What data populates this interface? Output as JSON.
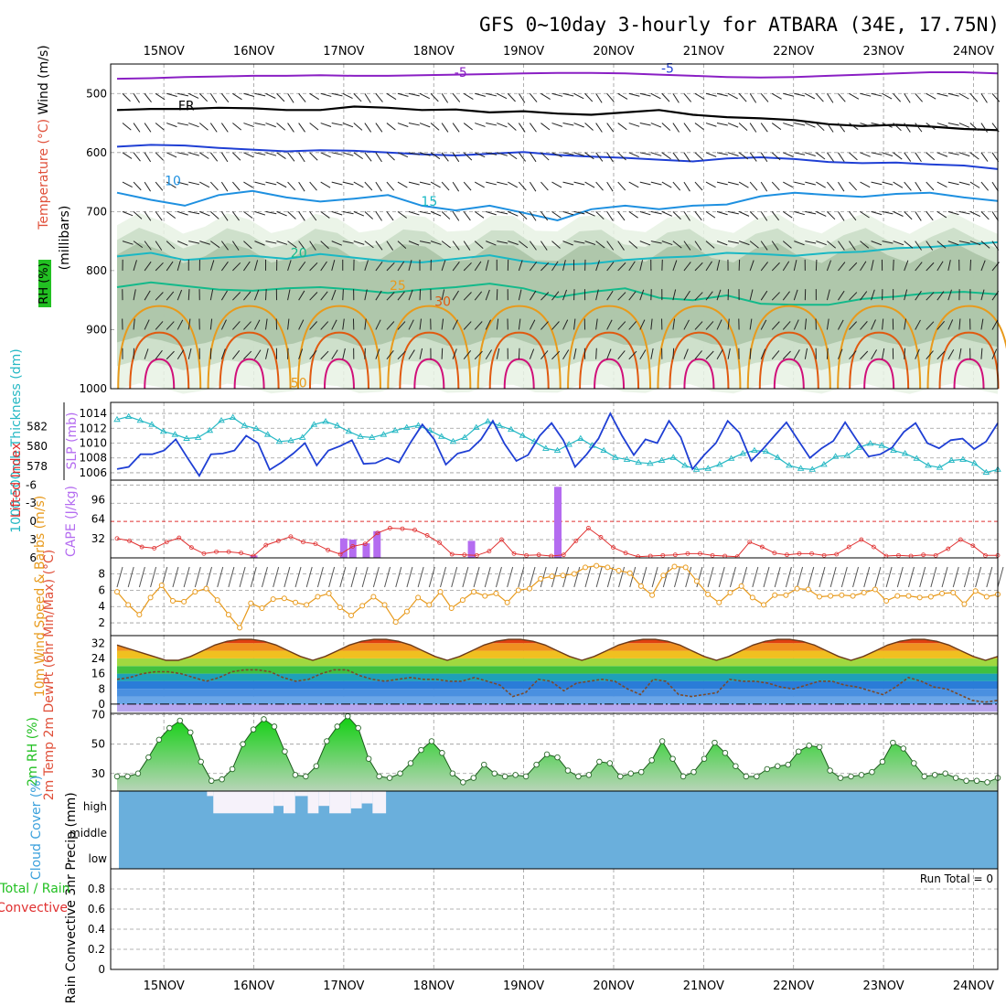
{
  "title": "GFS 0~10day 3-hourly for ATBARA (34E, 17.75N)",
  "dates": [
    "15NOV",
    "16NOV",
    "17NOV",
    "18NOV",
    "19NOV",
    "20NOV",
    "21NOV",
    "22NOV",
    "23NOV",
    "24NOV"
  ],
  "colors": {
    "temp_minus5": "#8a1fc4",
    "temp_fr": "#000000",
    "temp_m5": "#1f3fd4",
    "temp_10": "#1e90e0",
    "temp_15": "#19b8c4",
    "temp_20": "#13b98a",
    "temp_25": "#e89a1c",
    "temp_30": "#e05a10",
    "temp_35": "#d0107a",
    "slp": "#1f3fd4",
    "thickness": "#25b8c4",
    "lifted": "#e03030",
    "cape": "#b46cf0",
    "wind": "#e89a1c",
    "rh2m": "#22c022",
    "cloud": "#6aafdc"
  },
  "chart_data": [
    {
      "type": "contour",
      "panel": "upper-air",
      "ylabel_rh": "RH (%)",
      "ylabel_temp": "Temperature (°C)",
      "ylabel_wind": "Wind (m/s)",
      "ylabel_p": "(millibars)",
      "yticks": [
        500,
        600,
        700,
        800,
        900,
        1000
      ],
      "ylim": [
        450,
        1000
      ],
      "contour_labels": [
        {
          "text": "-5",
          "level": -5
        },
        {
          "text": "FR",
          "level": 0
        },
        {
          "text": "-5",
          "level": -5
        },
        {
          "text": "10",
          "level": 10
        },
        {
          "text": "15",
          "level": 15
        },
        {
          "text": "20",
          "level": 20
        },
        {
          "text": "25",
          "level": 25
        },
        {
          "text": "30",
          "level": 30
        },
        {
          "text": "50",
          "level": 50
        }
      ],
      "isotherms": [
        {
          "name": "-5",
          "p": [
            475,
            474,
            472,
            471,
            470,
            470,
            469,
            470,
            470,
            469,
            468,
            467,
            466,
            465,
            465,
            466,
            468,
            470,
            472,
            473,
            472,
            470,
            468,
            466,
            464,
            464,
            466
          ]
        },
        {
          "name": "FR",
          "p": [
            528,
            526,
            526,
            524,
            525,
            528,
            528,
            522,
            524,
            528,
            527,
            532,
            530,
            534,
            536,
            532,
            528,
            536,
            540,
            542,
            545,
            552,
            555,
            553,
            556,
            560,
            562
          ]
        },
        {
          "name": "-5b",
          "p": [
            590,
            587,
            588,
            592,
            595,
            598,
            596,
            597,
            600,
            603,
            605,
            602,
            599,
            604,
            607,
            609,
            612,
            615,
            610,
            608,
            611,
            616,
            618,
            617,
            620,
            622,
            628
          ]
        },
        {
          "name": "10",
          "p": [
            668,
            680,
            690,
            672,
            665,
            676,
            683,
            678,
            672,
            690,
            698,
            690,
            702,
            715,
            696,
            690,
            696,
            690,
            688,
            674,
            668,
            672,
            675,
            670,
            668,
            676,
            682
          ]
        },
        {
          "name": "15",
          "p": [
            776,
            770,
            782,
            778,
            775,
            780,
            772,
            778,
            784,
            786,
            780,
            774,
            784,
            790,
            788,
            782,
            778,
            776,
            770,
            772,
            775,
            770,
            768,
            762,
            760,
            756,
            752
          ]
        },
        {
          "name": "20",
          "p": [
            828,
            820,
            826,
            832,
            834,
            830,
            828,
            832,
            838,
            832,
            828,
            822,
            830,
            845,
            836,
            830,
            846,
            850,
            842,
            856,
            858,
            858,
            848,
            844,
            838,
            836,
            840
          ]
        }
      ],
      "rh_levels": [
        30,
        50,
        70,
        90
      ]
    },
    {
      "type": "line",
      "panel": "slp-thickness",
      "ylabel_left": "1000-500mb Thickness (dm)",
      "ylabel_right": "SLP (mb)",
      "yticks_left": [
        578,
        580,
        582
      ],
      "yticks_right": [
        1006,
        1008,
        1010,
        1012,
        1014
      ],
      "series": [
        {
          "name": "SLP (mb)",
          "values": [
            1006.5,
            1006.8,
            1008.5,
            1008.5,
            1009,
            1010.5,
            1008,
            1005.6,
            1008.5,
            1008.6,
            1009,
            1011,
            1010,
            1006.4,
            1007.4,
            1008.6,
            1010,
            1007,
            1009,
            1009.6,
            1010.4,
            1007.2,
            1007.3,
            1008,
            1007.4,
            1010.1,
            1012.5,
            1010.5,
            1007.1,
            1008.6,
            1009,
            1010.5,
            1013,
            1009.9,
            1007.6,
            1008.4,
            1011,
            1012.7,
            1010.4,
            1006.8,
            1008.5,
            1010.6,
            1014,
            1011,
            1008.4,
            1010.5,
            1010,
            1013,
            1010.8,
            1006.5,
            1008.4,
            1010,
            1013,
            1011.4,
            1007.6,
            1009.2,
            1011,
            1012.8,
            1010.4,
            1008,
            1009.3,
            1010.3,
            1012.8,
            1010.4,
            1008.2,
            1008.5,
            1009.4,
            1011.5,
            1012.7,
            1010,
            1009.3,
            1010.4,
            1010.6,
            1009.2,
            1010.2,
            1012.7
          ]
        },
        {
          "name": "Thickness (dm)",
          "values": [
            582.7,
            583,
            582.6,
            582.2,
            581.5,
            581.2,
            580.8,
            580.9,
            581.6,
            582.6,
            582.9,
            582.1,
            581.8,
            581.2,
            580.5,
            580.6,
            580.9,
            582.2,
            582.5,
            582.1,
            581.5,
            581,
            580.9,
            581.2,
            581.6,
            581.9,
            582.1,
            581.6,
            581,
            580.5,
            580.9,
            581.9,
            582.5,
            582.1,
            581.7,
            581.1,
            580.5,
            579.8,
            579.6,
            580.2,
            580.8,
            580.1,
            579.6,
            578.9,
            578.7,
            578.4,
            578.3,
            578.6,
            578.9,
            578.1,
            577.7,
            577.8,
            578.2,
            578.8,
            579.3,
            579.6,
            579.5,
            578.9,
            578.1,
            577.8,
            577.7,
            578.2,
            579,
            579.1,
            579.9,
            580.3,
            580.1,
            579.6,
            579.3,
            578.8,
            578.1,
            577.9,
            578.6,
            578.7,
            578.3,
            577.4,
            577.7
          ]
        }
      ]
    },
    {
      "type": "bar",
      "panel": "cape-lifted",
      "ylabel_left": "Lifted Index",
      "ylabel_right": "CAPE (J/kg)",
      "yticks_left": [
        "-6",
        "-3",
        "0",
        "3",
        "6"
      ],
      "yticks_right": [
        32,
        64,
        96
      ],
      "series": [
        {
          "name": "Lifted Index",
          "values": [
            2.8,
            3.2,
            4.2,
            4.4,
            3.4,
            2.7,
            4.3,
            5.3,
            5,
            5,
            5.2,
            5.7,
            3.9,
            3.2,
            2.5,
            3.4,
            3.7,
            4.7,
            5.4,
            4.1,
            3.7,
            1.9,
            1.1,
            1.2,
            1.4,
            2.3,
            3.5,
            5.4,
            5.5,
            5.6,
            4.9,
            3,
            5.3,
            5.6,
            5.5,
            5.7,
            5.5,
            3.2,
            1.1,
            2.6,
            4.3,
            5.2,
            5.8,
            5.7,
            5.6,
            5.5,
            5.3,
            5.3,
            5.6,
            5.7,
            5.8,
            3.4,
            4.2,
            5.2,
            5.5,
            5.3,
            5.3,
            5.6,
            5.4,
            4.2,
            3,
            4.2,
            5.7,
            5.6,
            5.7,
            5.5,
            5.6,
            4.5,
            3,
            4,
            5.6,
            5.6
          ]
        },
        {
          "name": "CAPE (J/kg)",
          "points": [
            [
              16.0,
              4
            ],
            [
              17.0,
              32
            ],
            [
              17.1,
              30
            ],
            [
              17.25,
              24
            ],
            [
              17.37,
              44
            ],
            [
              18.42,
              28
            ],
            [
              19.38,
              117
            ]
          ]
        }
      ]
    },
    {
      "type": "line",
      "panel": "wind10m",
      "ylabel": "10m Wind Speed & Barbs (m/s)",
      "yticks": [
        2,
        4,
        6,
        8
      ],
      "series": [
        {
          "name": "10m Wind Speed (m/s)",
          "values": [
            5.8,
            4.2,
            3.0,
            5.1,
            6.6,
            4.7,
            4.6,
            5.8,
            6.2,
            4.8,
            3.0,
            1.4,
            4.4,
            3.8,
            4.9,
            5.0,
            4.5,
            4.2,
            5.2,
            5.6,
            3.9,
            2.9,
            4.1,
            5.2,
            4.2,
            2.1,
            3.4,
            5.1,
            4.2,
            5.8,
            3.8,
            4.8,
            5.8,
            5.3,
            5.6,
            4.5,
            6.0,
            6.2,
            7.4,
            7.7,
            7.8,
            8.0,
            8.8,
            9.0,
            8.8,
            8.4,
            8.1,
            6.5,
            5.4,
            7.8,
            8.9,
            8.8,
            7.1,
            5.5,
            4.5,
            5.7,
            6.5,
            5.1,
            4.2,
            5.4,
            5.4,
            6.2,
            6.1,
            5.2,
            5.3,
            5.4,
            5.3,
            5.7,
            6.1,
            4.7,
            5.3,
            5.3,
            5.1,
            5.2,
            5.6,
            5.7,
            4.3,
            5.9,
            5.2,
            5.5
          ]
        }
      ]
    },
    {
      "type": "area",
      "panel": "temp2m",
      "ylabel": "2m Temp 2m DewPt (6hr Min/Max) (°C)",
      "yticks": [
        0,
        8,
        16,
        24,
        32
      ],
      "series": [
        {
          "name": "2m Temp",
          "values": [
            31,
            29,
            27,
            25,
            23,
            23,
            25,
            28,
            31,
            33,
            34,
            34,
            33,
            31,
            28,
            25,
            23,
            25,
            28,
            31,
            33,
            34,
            34,
            33,
            31,
            28,
            25,
            23,
            25,
            28,
            31,
            33,
            34,
            34,
            33,
            31,
            28,
            25,
            23,
            25,
            28,
            31,
            33,
            34,
            34,
            33,
            31,
            28,
            25,
            23,
            25,
            28,
            31,
            33,
            34,
            34,
            33,
            31,
            28,
            25,
            23,
            25,
            28,
            31,
            33,
            34,
            34,
            33,
            31,
            28,
            25,
            23,
            25
          ]
        },
        {
          "name": "2m DewPt",
          "values": [
            13,
            14,
            16,
            17,
            17,
            16,
            14,
            12,
            14,
            17,
            18,
            18,
            17,
            14,
            12,
            13,
            16,
            18,
            18,
            15,
            13,
            12,
            13,
            14,
            13,
            13,
            12,
            12,
            14,
            12,
            10,
            4,
            6,
            13,
            12,
            7,
            11,
            12,
            13,
            12,
            8,
            5,
            13,
            12,
            5,
            4,
            5,
            6,
            13,
            12,
            12,
            11,
            9,
            8,
            10,
            12,
            12,
            10,
            9,
            7,
            5,
            9,
            14,
            12,
            9,
            8,
            5,
            2,
            1,
            2
          ]
        }
      ]
    },
    {
      "type": "area",
      "panel": "rh2m",
      "ylabel": "2m RH (%)",
      "yticks": [
        30,
        50,
        70
      ],
      "series": [
        {
          "name": "2m RH (%)",
          "values": [
            28,
            28,
            30,
            41,
            53,
            61,
            66,
            58,
            38,
            25,
            26,
            33,
            50,
            60,
            67,
            62,
            45,
            29,
            28,
            35,
            52,
            62,
            69,
            61,
            40,
            28,
            27,
            30,
            37,
            46,
            52,
            44,
            30,
            24,
            27,
            36,
            30,
            28,
            29,
            28,
            36,
            43,
            41,
            32,
            28,
            29,
            38,
            37,
            28,
            30,
            31,
            39,
            52,
            40,
            28,
            31,
            40,
            51,
            44,
            35,
            28,
            28,
            33,
            35,
            36,
            45,
            49,
            48,
            32,
            27,
            28,
            29,
            31,
            38,
            51,
            47,
            37,
            28,
            29,
            30,
            27,
            25,
            25,
            24,
            27
          ]
        }
      ]
    },
    {
      "type": "heatmap",
      "panel": "cloud",
      "ylabel": "Cloud Cover (%)",
      "yticks": [
        "high",
        "middle",
        "low"
      ],
      "series": [
        {
          "name": "high",
          "values": [
            [
              15.48,
              15.55,
              0.2
            ],
            [
              15.55,
              16.22,
              0.9
            ],
            [
              16.22,
              16.33,
              0.6
            ],
            [
              16.33,
              16.46,
              0.9
            ],
            [
              16.46,
              16.6,
              0.2
            ],
            [
              16.6,
              16.72,
              0.9
            ],
            [
              16.72,
              16.84,
              0.6
            ],
            [
              16.84,
              17.08,
              0.9
            ],
            [
              17.08,
              17.2,
              0.7
            ],
            [
              17.2,
              17.32,
              0.5
            ],
            [
              17.32,
              17.47,
              0.9
            ]
          ]
        }
      ]
    },
    {
      "type": "bar",
      "panel": "precip",
      "ylabel": "Total / Rain Convective 3hr Precip (mm)",
      "yticks": [
        0,
        0.2,
        0.4,
        0.6,
        0.8
      ],
      "ylim": [
        0,
        1
      ],
      "annotation": "Run Total = 0",
      "series": [
        {
          "name": "Total / Rain",
          "values": []
        },
        {
          "name": "Convective",
          "values": []
        }
      ]
    }
  ]
}
